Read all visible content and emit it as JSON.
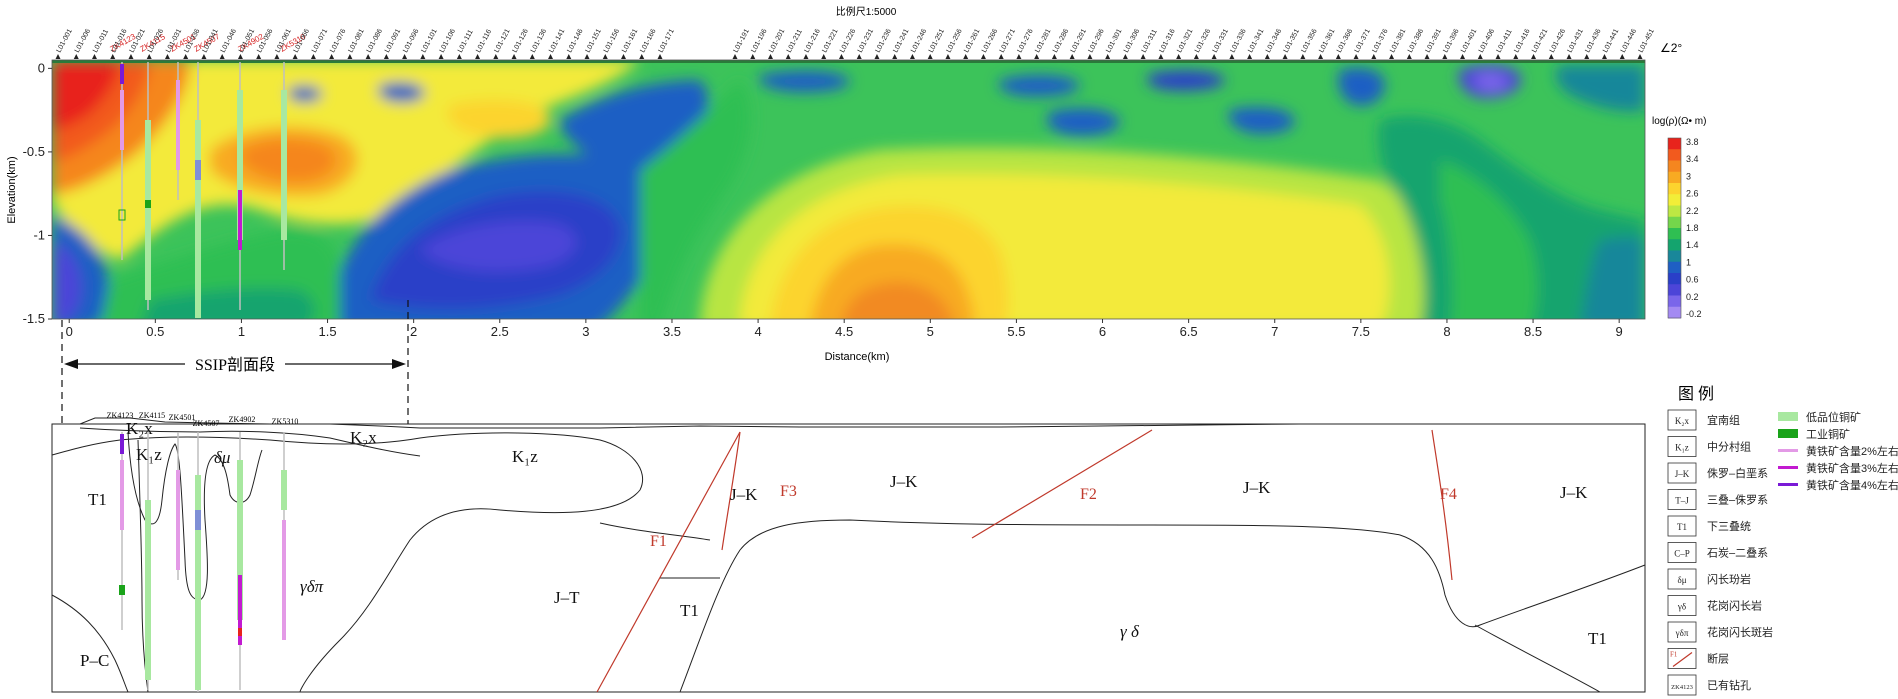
{
  "top_panel": {
    "scale_label": "比例尺1:5000",
    "direction_label": "∠2°",
    "x_axis": {
      "label": "Distance(km)",
      "range": [
        -0.1,
        9.15
      ],
      "ticks": [
        "0",
        "0.5",
        "1",
        "1.5",
        "2",
        "2.5",
        "3",
        "3.5",
        "4",
        "4.5",
        "5",
        "5.5",
        "6",
        "6.5",
        "7",
        "7.5",
        "8",
        "8.5",
        "9"
      ]
    },
    "y_axis": {
      "label": "Elevation(km)",
      "range": [
        -1.5,
        0.05
      ],
      "ticks": [
        "0",
        "-0.5",
        "-1",
        "-1.5"
      ]
    },
    "colorbar": {
      "title": "log(ρ)(Ω• m)",
      "ticks": [
        "3.8",
        "3.4",
        "3",
        "2.6",
        "2.2",
        "1.8",
        "1.4",
        "1",
        "0.6",
        "0.2",
        "-0.2"
      ],
      "colors": [
        "#e8231c",
        "#f25a1e",
        "#f5861f",
        "#f8aa22",
        "#fcd42e",
        "#f2ee38",
        "#bde843",
        "#74d64b",
        "#2fbf52",
        "#14a46e",
        "#19879a",
        "#1f5fc4",
        "#2a3fc8",
        "#4c45d8",
        "#7a66ea",
        "#a48af2"
      ]
    },
    "stations_left": [
      "L01-001",
      "L01-006",
      "L01-011",
      "L01-016",
      "L01-021",
      "L01-026",
      "L01-031",
      "L01-036",
      "L01-041",
      "L01-046",
      "L01-051",
      "L01-056",
      "L01-061",
      "L01-066",
      "L01-071",
      "L01-076",
      "L01-081",
      "L01-086",
      "L01-091",
      "L01-096",
      "L01-101",
      "L01-106",
      "L01-111",
      "L01-116",
      "L01-121",
      "L01-126",
      "L01-136",
      "L01-141",
      "L01-146",
      "L01-151",
      "L01-156",
      "L01-161",
      "L01-166",
      "L01-171"
    ],
    "stations_right": [
      "L01-191",
      "L01-196",
      "L01-201",
      "L01-211",
      "L01-216",
      "L01-221",
      "L01-226",
      "L01-231",
      "L01-236",
      "L01-241",
      "L01-246",
      "L01-251",
      "L01-256",
      "L01-261",
      "L01-266",
      "L01-271",
      "L01-276",
      "L01-281",
      "L01-286",
      "L01-291",
      "L01-296",
      "L01-301",
      "L01-306",
      "L01-311",
      "L01-316",
      "L01-321",
      "L01-326",
      "L01-331",
      "L01-336",
      "L01-341",
      "L01-346",
      "L01-351",
      "L01-356",
      "L01-361",
      "L01-366",
      "L01-371",
      "L01-376",
      "L01-381",
      "L01-386",
      "L01-391",
      "L01-396",
      "L01-401",
      "L01-406",
      "L01-411",
      "L01-416",
      "L01-421",
      "L01-426",
      "L01-431",
      "L01-436",
      "L01-441",
      "L01-446",
      "L01-451"
    ],
    "boreholes": [
      "ZK4123",
      "ZK4115",
      "ZK4501",
      "ZK4507",
      "ZK4902",
      "ZK5310"
    ]
  },
  "section_marker": {
    "label": "SSIP剖面段"
  },
  "bottom_panel": {
    "borehole_labels": [
      "ZK4123",
      "ZK4115",
      "ZK4501",
      "ZK4507",
      "ZK4902",
      "ZK5310"
    ],
    "units": {
      "k2x_a": "K₂x",
      "k2x_b": "K₂x",
      "k1z_a": "K₁z",
      "k1z_b": "K₁z",
      "dmu": "δμ",
      "gdp": "γδπ",
      "t1_a": "T1",
      "t1_b": "T1",
      "t1_c": "T1",
      "pc": "P–C",
      "jt": "J–T",
      "jk_a": "J–K",
      "jk_b": "J–K",
      "jk_c": "J–K",
      "jk_d": "J–K",
      "gd": "γ  δ"
    },
    "faults": [
      "F1",
      "F2",
      "F3",
      "F4"
    ]
  },
  "legend": {
    "title": "图   例",
    "units": [
      {
        "sym": "K₂x",
        "label": "宜南组"
      },
      {
        "sym": "K₁z",
        "label": "中分村组"
      },
      {
        "sym": "J–K",
        "label": "侏罗–白垩系"
      },
      {
        "sym": "T–J",
        "label": "三叠–侏罗系"
      },
      {
        "sym": "T1",
        "label": "下三叠统"
      },
      {
        "sym": "C–P",
        "label": "石炭–二叠系"
      },
      {
        "sym": "δμ",
        "label": "闪长玢岩"
      },
      {
        "sym": "γδ",
        "label": "花岗闪长岩"
      },
      {
        "sym": "γδπ",
        "label": "花岗闪长斑岩"
      },
      {
        "sym": "F1",
        "label": "断层"
      },
      {
        "sym": "ZK4123",
        "label": "已有钻孔"
      }
    ],
    "ores": [
      {
        "label": "低品位铜矿",
        "color": "#a8e8a0"
      },
      {
        "label": "工业铜矿",
        "color": "#1aa31a"
      },
      {
        "label": "黄铁矿含量2%左右",
        "color": "#e39ae6"
      },
      {
        "label": "黄铁矿含量3%左右",
        "color": "#c21ad0"
      },
      {
        "label": "黄铁矿含量4%左右",
        "color": "#7a1ad6"
      }
    ]
  }
}
